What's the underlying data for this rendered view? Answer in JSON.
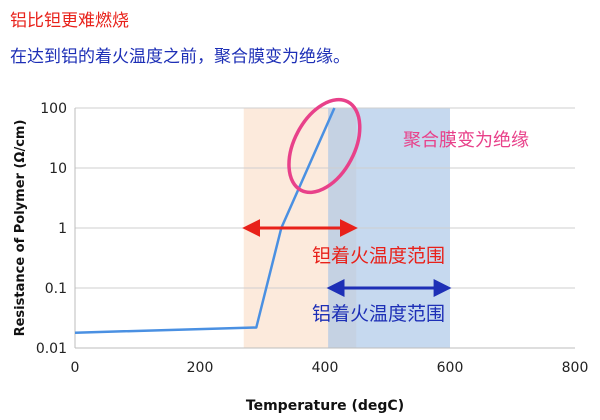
{
  "heading": "铝比钽更难燃烧",
  "subheading": "在达到铝的着火温度之前，聚合膜变为绝缘。",
  "chart_data": {
    "type": "line",
    "xlabel": "Temperature (degC)",
    "ylabel": "Resistance of Polymer (Ω/cm)",
    "xlim": [
      0,
      800
    ],
    "ylim": [
      0.01,
      100
    ],
    "y_scale": "log",
    "x_ticks": [
      0,
      200,
      400,
      600,
      800
    ],
    "y_ticks": [
      {
        "value": 0.01,
        "label": "0.01"
      },
      {
        "value": 0.1,
        "label": "0.1"
      },
      {
        "value": 1,
        "label": "1"
      },
      {
        "value": 10,
        "label": "10"
      },
      {
        "value": 100,
        "label": "100"
      }
    ],
    "grid": "horizontal",
    "series": [
      {
        "color": "#4a90e2",
        "points": [
          [
            0,
            0.018
          ],
          [
            290,
            0.022
          ],
          [
            330,
            1.0
          ],
          [
            415,
            100
          ]
        ]
      }
    ],
    "bands": [
      {
        "x0": 270,
        "x1": 450,
        "color": "#f9d9bf",
        "opacity": 0.55
      },
      {
        "x0": 405,
        "x1": 600,
        "color": "#a8c4e6",
        "opacity": 0.65
      }
    ],
    "annotations": [
      {
        "text": "聚合膜变为绝缘",
        "color": "#e8418a"
      },
      {
        "text": "钽着火温度范围",
        "color": "#e8211a",
        "arrow_x": [
          270,
          450
        ],
        "arrow_y": 1.0
      },
      {
        "text": "铝着火温度范围",
        "color": "#1d2fb6",
        "arrow_x": [
          405,
          600
        ],
        "arrow_y": 0.1
      }
    ]
  }
}
